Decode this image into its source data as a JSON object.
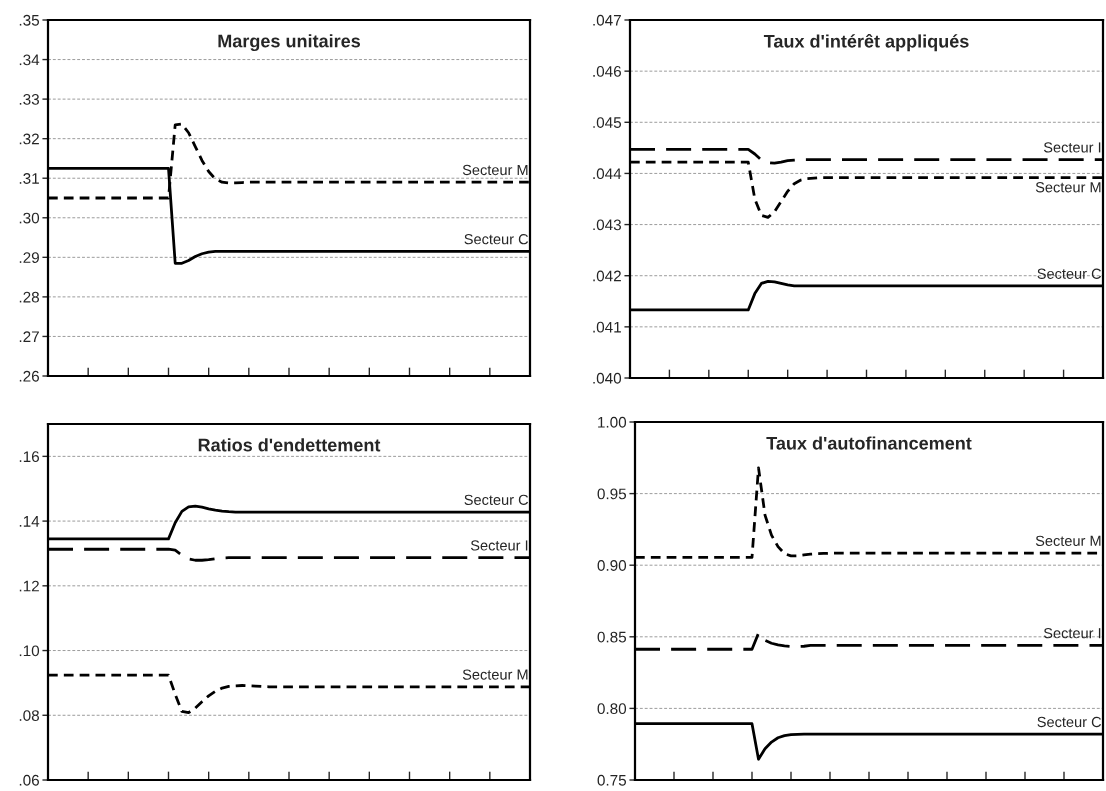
{
  "chart_data": [
    {
      "type": "line",
      "title": "Marges unitaires",
      "categories": [
        null,
        null,
        null,
        null,
        null,
        null,
        null,
        null,
        null,
        null,
        null,
        null,
        null,
        null,
        null,
        null,
        null,
        null,
        null,
        null,
        null,
        null,
        null,
        null,
        null,
        null,
        null,
        null,
        null,
        null,
        null,
        null,
        null,
        null,
        null,
        null,
        null,
        null,
        null,
        null,
        null,
        null,
        null,
        null,
        null,
        null,
        null,
        null,
        null,
        null,
        null,
        null,
        null,
        null,
        null,
        null,
        null,
        null,
        null,
        null,
        null,
        null,
        null,
        null,
        null,
        null,
        null,
        null,
        null,
        null,
        null,
        null,
        null
      ],
      "ylim": [
        0.26,
        0.35
      ],
      "yticks": [
        {
          "value": 0.26,
          "label": ".26"
        },
        {
          "value": 0.27,
          "label": ".27"
        },
        {
          "value": 0.28,
          "label": ".28"
        },
        {
          "value": 0.29,
          "label": ".29"
        },
        {
          "value": 0.3,
          "label": ".30"
        },
        {
          "value": 0.31,
          "label": ".31"
        },
        {
          "value": 0.32,
          "label": ".32"
        },
        {
          "value": 0.33,
          "label": ".33"
        },
        {
          "value": 0.34,
          "label": ".34"
        },
        {
          "value": 0.35,
          "label": ".35"
        }
      ],
      "grid": "y",
      "tick_labels": "y",
      "legend": false,
      "series": [
        {
          "name": "Secteur M",
          "color": "#000000",
          "line_style": "dotted",
          "values": [
            0.305,
            0.305,
            0.305,
            0.305,
            0.305,
            0.305,
            0.305,
            0.305,
            0.305,
            0.305,
            0.305,
            0.305,
            0.305,
            0.305,
            0.305,
            0.305,
            0.305,
            0.305,
            0.305,
            0.3235,
            0.3237,
            0.3215,
            0.318,
            0.3145,
            0.3117,
            0.3098,
            0.309,
            0.3088,
            0.3088,
            0.3089,
            0.309,
            0.309,
            0.309,
            0.309,
            0.309,
            0.309,
            0.309,
            0.309,
            0.309,
            0.309,
            0.309,
            0.309,
            0.309,
            0.309,
            0.309,
            0.309,
            0.309,
            0.309,
            0.309,
            0.309,
            0.309,
            0.309,
            0.309,
            0.309,
            0.309,
            0.309,
            0.309,
            0.309,
            0.309,
            0.309,
            0.309,
            0.309,
            0.309,
            0.309,
            0.309,
            0.309,
            0.309,
            0.309,
            0.309,
            0.309,
            0.309,
            0.309,
            0.309
          ]
        },
        {
          "name": "Secteur C",
          "color": "#000000",
          "line_style": "solid",
          "values": [
            0.3125,
            0.3125,
            0.3125,
            0.3125,
            0.3125,
            0.3125,
            0.3125,
            0.3125,
            0.3125,
            0.3125,
            0.3125,
            0.3125,
            0.3125,
            0.3125,
            0.3125,
            0.3125,
            0.3125,
            0.3125,
            0.3125,
            0.2885,
            0.2885,
            0.2892,
            0.2902,
            0.2909,
            0.2913,
            0.2915,
            0.2915,
            0.2915,
            0.2915,
            0.2915,
            0.2915,
            0.2915,
            0.2915,
            0.2915,
            0.2915,
            0.2915,
            0.2915,
            0.2915,
            0.2915,
            0.2915,
            0.2915,
            0.2915,
            0.2915,
            0.2915,
            0.2915,
            0.2915,
            0.2915,
            0.2915,
            0.2915,
            0.2915,
            0.2915,
            0.2915,
            0.2915,
            0.2915,
            0.2915,
            0.2915,
            0.2915,
            0.2915,
            0.2915,
            0.2915,
            0.2915,
            0.2915,
            0.2915,
            0.2915,
            0.2915,
            0.2915,
            0.2915,
            0.2915,
            0.2915,
            0.2915,
            0.2915,
            0.2915,
            0.2915
          ]
        }
      ]
    },
    {
      "type": "line",
      "title": "Taux d'intérêt appliqués",
      "categories": [
        null,
        null,
        null,
        null,
        null,
        null,
        null,
        null,
        null,
        null,
        null,
        null,
        null,
        null,
        null,
        null,
        null,
        null,
        null,
        null,
        null,
        null,
        null,
        null,
        null,
        null,
        null,
        null,
        null,
        null,
        null,
        null,
        null,
        null,
        null,
        null,
        null,
        null,
        null,
        null,
        null,
        null,
        null,
        null,
        null,
        null,
        null,
        null,
        null,
        null,
        null,
        null,
        null,
        null,
        null,
        null,
        null,
        null,
        null,
        null,
        null,
        null,
        null,
        null,
        null,
        null,
        null,
        null,
        null,
        null,
        null,
        null,
        null
      ],
      "ylim": [
        0.04,
        0.047
      ],
      "yticks": [
        {
          "value": 0.04,
          "label": ".040"
        },
        {
          "value": 0.041,
          "label": ".041"
        },
        {
          "value": 0.042,
          "label": ".042"
        },
        {
          "value": 0.043,
          "label": ".043"
        },
        {
          "value": 0.044,
          "label": ".044"
        },
        {
          "value": 0.045,
          "label": ".045"
        },
        {
          "value": 0.046,
          "label": ".046"
        },
        {
          "value": 0.047,
          "label": ".047"
        }
      ],
      "grid": "y",
      "tick_labels": "y",
      "legend": false,
      "series": [
        {
          "name": "Secteur I",
          "color": "#000000",
          "line_style": "dashed",
          "values": [
            0.04447,
            0.04447,
            0.04447,
            0.04447,
            0.04447,
            0.04447,
            0.04447,
            0.04447,
            0.04447,
            0.04447,
            0.04447,
            0.04447,
            0.04447,
            0.04447,
            0.04447,
            0.04447,
            0.04447,
            0.04447,
            0.04447,
            0.04438,
            0.04426,
            0.04421,
            0.0442,
            0.04422,
            0.04425,
            0.04426,
            0.04427,
            0.04427,
            0.04427,
            0.04427,
            0.04427,
            0.04427,
            0.04427,
            0.04427,
            0.04427,
            0.04427,
            0.04427,
            0.04427,
            0.04427,
            0.04427,
            0.04427,
            0.04427,
            0.04427,
            0.04427,
            0.04427,
            0.04427,
            0.04427,
            0.04427,
            0.04427,
            0.04427,
            0.04427,
            0.04427,
            0.04427,
            0.04427,
            0.04427,
            0.04427,
            0.04427,
            0.04427,
            0.04427,
            0.04427,
            0.04427,
            0.04427,
            0.04427,
            0.04427,
            0.04427,
            0.04427,
            0.04427,
            0.04427,
            0.04427,
            0.04427,
            0.04427,
            0.04427,
            0.04427
          ]
        },
        {
          "name": "Secteur M",
          "color": "#000000",
          "line_style": "dotted",
          "values": [
            0.04422,
            0.04422,
            0.04422,
            0.04422,
            0.04422,
            0.04422,
            0.04422,
            0.04422,
            0.04422,
            0.04422,
            0.04422,
            0.04422,
            0.04422,
            0.04422,
            0.04422,
            0.04422,
            0.04422,
            0.04422,
            0.04422,
            0.0435,
            0.04318,
            0.04314,
            0.04325,
            0.04345,
            0.04365,
            0.0438,
            0.04387,
            0.0439,
            0.04391,
            0.04392,
            0.04392,
            0.04392,
            0.04392,
            0.04392,
            0.04392,
            0.04392,
            0.04392,
            0.04392,
            0.04392,
            0.04392,
            0.04392,
            0.04392,
            0.04392,
            0.04392,
            0.04392,
            0.04392,
            0.04392,
            0.04392,
            0.04392,
            0.04392,
            0.04392,
            0.04392,
            0.04392,
            0.04392,
            0.04392,
            0.04392,
            0.04392,
            0.04392,
            0.04392,
            0.04392,
            0.04392,
            0.04392,
            0.04392,
            0.04392,
            0.04392,
            0.04392,
            0.04392,
            0.04392,
            0.04392,
            0.04392,
            0.04392,
            0.04392,
            0.04392
          ]
        },
        {
          "name": "Secteur C",
          "color": "#000000",
          "line_style": "solid",
          "values": [
            0.04133,
            0.04133,
            0.04133,
            0.04133,
            0.04133,
            0.04133,
            0.04133,
            0.04133,
            0.04133,
            0.04133,
            0.04133,
            0.04133,
            0.04133,
            0.04133,
            0.04133,
            0.04133,
            0.04133,
            0.04133,
            0.04133,
            0.04165,
            0.04185,
            0.04189,
            0.04188,
            0.04185,
            0.04182,
            0.0418,
            0.0418,
            0.0418,
            0.0418,
            0.0418,
            0.0418,
            0.0418,
            0.0418,
            0.0418,
            0.0418,
            0.0418,
            0.0418,
            0.0418,
            0.0418,
            0.0418,
            0.0418,
            0.0418,
            0.0418,
            0.0418,
            0.0418,
            0.0418,
            0.0418,
            0.0418,
            0.0418,
            0.0418,
            0.0418,
            0.0418,
            0.0418,
            0.0418,
            0.0418,
            0.0418,
            0.0418,
            0.0418,
            0.0418,
            0.0418,
            0.0418,
            0.0418,
            0.0418,
            0.0418,
            0.0418,
            0.0418,
            0.0418,
            0.0418,
            0.0418,
            0.0418,
            0.0418,
            0.0418,
            0.0418
          ]
        }
      ]
    },
    {
      "type": "line",
      "title": "Ratios d'endettement",
      "categories": [
        null,
        null,
        null,
        null,
        null,
        null,
        null,
        null,
        null,
        null,
        null,
        null,
        null,
        null,
        null,
        null,
        null,
        null,
        null,
        null,
        null,
        null,
        null,
        null,
        null,
        null,
        null,
        null,
        null,
        null,
        null,
        null,
        null,
        null,
        null,
        null,
        null,
        null,
        null,
        null,
        null,
        null,
        null,
        null,
        null,
        null,
        null,
        null,
        null,
        null,
        null,
        null,
        null,
        null,
        null,
        null,
        null,
        null,
        null,
        null,
        null,
        null,
        null,
        null,
        null,
        null,
        null,
        null,
        null,
        null,
        null,
        null,
        null
      ],
      "ylim": [
        0.06,
        0.17
      ],
      "yticks": [
        {
          "value": 0.06,
          "label": ".06"
        },
        {
          "value": 0.08,
          "label": ".08"
        },
        {
          "value": 0.1,
          "label": ".10"
        },
        {
          "value": 0.12,
          "label": ".12"
        },
        {
          "value": 0.14,
          "label": ".14"
        },
        {
          "value": 0.16,
          "label": ".16"
        }
      ],
      "grid": "y",
      "tick_labels": "y",
      "legend": false,
      "series": [
        {
          "name": "Secteur C",
          "color": "#000000",
          "line_style": "solid",
          "values": [
            0.1345,
            0.1345,
            0.1345,
            0.1345,
            0.1345,
            0.1345,
            0.1345,
            0.1345,
            0.1345,
            0.1345,
            0.1345,
            0.1345,
            0.1345,
            0.1345,
            0.1345,
            0.1345,
            0.1345,
            0.1345,
            0.1345,
            0.1395,
            0.143,
            0.1444,
            0.1446,
            0.1443,
            0.1438,
            0.1434,
            0.1431,
            0.1429,
            0.1428,
            0.1428,
            0.1428,
            0.1428,
            0.1428,
            0.1428,
            0.1428,
            0.1428,
            0.1428,
            0.1428,
            0.1428,
            0.1428,
            0.1428,
            0.1428,
            0.1428,
            0.1428,
            0.1428,
            0.1428,
            0.1428,
            0.1428,
            0.1428,
            0.1428,
            0.1428,
            0.1428,
            0.1428,
            0.1428,
            0.1428,
            0.1428,
            0.1428,
            0.1428,
            0.1428,
            0.1428,
            0.1428,
            0.1428,
            0.1428,
            0.1428,
            0.1428,
            0.1428,
            0.1428,
            0.1428,
            0.1428,
            0.1428,
            0.1428,
            0.1428,
            0.1428
          ]
        },
        {
          "name": "Secteur I",
          "color": "#000000",
          "line_style": "dashed",
          "values": [
            0.1313,
            0.1313,
            0.1313,
            0.1313,
            0.1313,
            0.1313,
            0.1313,
            0.1313,
            0.1313,
            0.1313,
            0.1313,
            0.1313,
            0.1313,
            0.1313,
            0.1313,
            0.1313,
            0.1313,
            0.1313,
            0.1313,
            0.131,
            0.1295,
            0.1283,
            0.1279,
            0.1279,
            0.1281,
            0.1284,
            0.1286,
            0.1287,
            0.1287,
            0.1287,
            0.1287,
            0.1287,
            0.1287,
            0.1287,
            0.1287,
            0.1287,
            0.1287,
            0.1287,
            0.1287,
            0.1287,
            0.1287,
            0.1287,
            0.1287,
            0.1287,
            0.1287,
            0.1287,
            0.1287,
            0.1287,
            0.1287,
            0.1287,
            0.1287,
            0.1287,
            0.1287,
            0.1287,
            0.1287,
            0.1287,
            0.1287,
            0.1287,
            0.1287,
            0.1287,
            0.1287,
            0.1287,
            0.1287,
            0.1287,
            0.1287,
            0.1287,
            0.1287,
            0.1287,
            0.1287,
            0.1287,
            0.1287,
            0.1287,
            0.1287
          ]
        },
        {
          "name": "Secteur M",
          "color": "#000000",
          "line_style": "dotted",
          "values": [
            0.0924,
            0.0924,
            0.0924,
            0.0924,
            0.0924,
            0.0924,
            0.0924,
            0.0924,
            0.0924,
            0.0924,
            0.0924,
            0.0924,
            0.0924,
            0.0924,
            0.0924,
            0.0924,
            0.0924,
            0.0924,
            0.0924,
            0.0865,
            0.0812,
            0.0808,
            0.0822,
            0.0842,
            0.086,
            0.0874,
            0.0884,
            0.0889,
            0.0891,
            0.0892,
            0.0891,
            0.089,
            0.0889,
            0.0888,
            0.0888,
            0.0888,
            0.0888,
            0.0888,
            0.0888,
            0.0888,
            0.0888,
            0.0888,
            0.0888,
            0.0888,
            0.0888,
            0.0888,
            0.0888,
            0.0888,
            0.0888,
            0.0888,
            0.0888,
            0.0888,
            0.0888,
            0.0888,
            0.0888,
            0.0888,
            0.0888,
            0.0888,
            0.0888,
            0.0888,
            0.0888,
            0.0888,
            0.0888,
            0.0888,
            0.0888,
            0.0888,
            0.0888,
            0.0888,
            0.0888,
            0.0888,
            0.0888,
            0.0888,
            0.0888
          ]
        }
      ]
    },
    {
      "type": "line",
      "title": "Taux d'autofinancement",
      "categories": [
        null,
        null,
        null,
        null,
        null,
        null,
        null,
        null,
        null,
        null,
        null,
        null,
        null,
        null,
        null,
        null,
        null,
        null,
        null,
        null,
        null,
        null,
        null,
        null,
        null,
        null,
        null,
        null,
        null,
        null,
        null,
        null,
        null,
        null,
        null,
        null,
        null,
        null,
        null,
        null,
        null,
        null,
        null,
        null,
        null,
        null,
        null,
        null,
        null,
        null,
        null,
        null,
        null,
        null,
        null,
        null,
        null,
        null,
        null,
        null,
        null,
        null,
        null,
        null,
        null,
        null,
        null,
        null,
        null,
        null,
        null,
        null,
        null
      ],
      "ylim": [
        0.75,
        1.0
      ],
      "yticks": [
        {
          "value": 0.75,
          "label": "0.75"
        },
        {
          "value": 0.8,
          "label": "0.80"
        },
        {
          "value": 0.85,
          "label": "0.85"
        },
        {
          "value": 0.9,
          "label": "0.90"
        },
        {
          "value": 0.95,
          "label": "0.95"
        },
        {
          "value": 1.0,
          "label": "1.00"
        }
      ],
      "grid": "y",
      "tick_labels": "y",
      "legend": false,
      "series": [
        {
          "name": "Secteur M",
          "color": "#000000",
          "line_style": "dotted",
          "values": [
            0.9055,
            0.9055,
            0.9055,
            0.9055,
            0.9055,
            0.9055,
            0.9055,
            0.9055,
            0.9055,
            0.9055,
            0.9055,
            0.9055,
            0.9055,
            0.9055,
            0.9055,
            0.9055,
            0.9055,
            0.9055,
            0.9055,
            0.968,
            0.935,
            0.921,
            0.913,
            0.908,
            0.9065,
            0.9066,
            0.9072,
            0.9077,
            0.908,
            0.9082,
            0.9084,
            0.9085,
            0.9085,
            0.9085,
            0.9085,
            0.9085,
            0.9085,
            0.9085,
            0.9085,
            0.9085,
            0.9085,
            0.9085,
            0.9085,
            0.9085,
            0.9085,
            0.9085,
            0.9085,
            0.9085,
            0.9085,
            0.9085,
            0.9085,
            0.9085,
            0.9085,
            0.9085,
            0.9085,
            0.9085,
            0.9085,
            0.9085,
            0.9085,
            0.9085,
            0.9085,
            0.9085,
            0.9085,
            0.9085,
            0.9085,
            0.9085,
            0.9085,
            0.9085,
            0.9085,
            0.9085,
            0.9085,
            0.9085,
            0.9085
          ]
        },
        {
          "name": "Secteur I",
          "color": "#000000",
          "line_style": "dashed",
          "values": [
            0.8413,
            0.8413,
            0.8413,
            0.8413,
            0.8413,
            0.8413,
            0.8413,
            0.8413,
            0.8413,
            0.8413,
            0.8413,
            0.8413,
            0.8413,
            0.8413,
            0.8413,
            0.8413,
            0.8413,
            0.8413,
            0.8413,
            0.8525,
            0.8475,
            0.8455,
            0.8443,
            0.8436,
            0.8433,
            0.8433,
            0.8434,
            0.844,
            0.844,
            0.844,
            0.844,
            0.844,
            0.844,
            0.844,
            0.844,
            0.844,
            0.844,
            0.844,
            0.844,
            0.844,
            0.844,
            0.844,
            0.844,
            0.844,
            0.844,
            0.844,
            0.844,
            0.844,
            0.844,
            0.844,
            0.844,
            0.844,
            0.844,
            0.844,
            0.844,
            0.844,
            0.844,
            0.844,
            0.844,
            0.844,
            0.844,
            0.844,
            0.844,
            0.844,
            0.844,
            0.844,
            0.844,
            0.844,
            0.844,
            0.844,
            0.844,
            0.844,
            0.844
          ]
        },
        {
          "name": "Secteur C",
          "color": "#000000",
          "line_style": "solid",
          "values": [
            0.7893,
            0.7893,
            0.7893,
            0.7893,
            0.7893,
            0.7893,
            0.7893,
            0.7893,
            0.7893,
            0.7893,
            0.7893,
            0.7893,
            0.7893,
            0.7893,
            0.7893,
            0.7893,
            0.7893,
            0.7893,
            0.7893,
            0.7645,
            0.7718,
            0.7765,
            0.7795,
            0.781,
            0.7817,
            0.7819,
            0.782,
            0.782,
            0.782,
            0.782,
            0.782,
            0.782,
            0.782,
            0.782,
            0.782,
            0.782,
            0.782,
            0.782,
            0.782,
            0.782,
            0.782,
            0.782,
            0.782,
            0.782,
            0.782,
            0.782,
            0.782,
            0.782,
            0.782,
            0.782,
            0.782,
            0.782,
            0.782,
            0.782,
            0.782,
            0.782,
            0.782,
            0.782,
            0.782,
            0.782,
            0.782,
            0.782,
            0.782,
            0.782,
            0.782,
            0.782,
            0.782,
            0.782,
            0.782,
            0.782,
            0.782,
            0.782,
            0.782
          ]
        }
      ]
    }
  ]
}
